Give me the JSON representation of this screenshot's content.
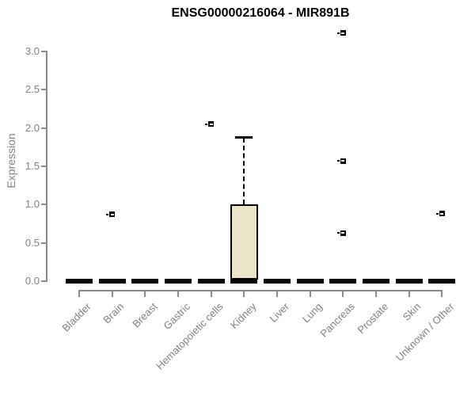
{
  "title": "ENSG00000216064 - MIR891B",
  "axes": {
    "y_label": "Expression",
    "y_tick_labels": [
      "0.0",
      "0.5",
      "1.0",
      "1.5",
      "2.0",
      "2.5",
      "3.0"
    ],
    "x_categories": [
      "Bladder",
      "Brain",
      "Breast",
      "Gastric",
      "Hematopoietic cells",
      "Kidney",
      "Liver",
      "Lung",
      "Pancreas",
      "Prostate",
      "Skin",
      "Unknown / Other"
    ]
  },
  "colors": {
    "title_text": "#000000",
    "axis_gray": "#8a8a8a",
    "label_gray": "#808080",
    "box_fill": "#e9e5c9",
    "box_border": "#000000",
    "median": "#000000"
  },
  "chart_data": {
    "type": "boxplot",
    "title": "ENSG00000216064 - MIR891B",
    "xlabel": "",
    "ylabel": "Expression",
    "ylim": [
      0,
      3.2
    ],
    "y_ticks": [
      0,
      0.5,
      1.0,
      1.5,
      2.0,
      2.5,
      3.0
    ],
    "grid": false,
    "legend": false,
    "categories": [
      "Bladder",
      "Brain",
      "Breast",
      "Gastric",
      "Hematopoietic cells",
      "Kidney",
      "Liver",
      "Lung",
      "Pancreas",
      "Prostate",
      "Skin",
      "Unknown / Other"
    ],
    "boxes": [
      {
        "category": "Bladder",
        "median": 0,
        "q1": 0,
        "q3": 0,
        "whisker_low": 0,
        "whisker_high": 0,
        "outliers": []
      },
      {
        "category": "Brain",
        "median": 0,
        "q1": 0,
        "q3": 0,
        "whisker_low": 0,
        "whisker_high": 0,
        "outliers": [
          0.87
        ]
      },
      {
        "category": "Breast",
        "median": 0,
        "q1": 0,
        "q3": 0,
        "whisker_low": 0,
        "whisker_high": 0,
        "outliers": []
      },
      {
        "category": "Gastric",
        "median": 0,
        "q1": 0,
        "q3": 0,
        "whisker_low": 0,
        "whisker_high": 0,
        "outliers": []
      },
      {
        "category": "Hematopoietic cells",
        "median": 0,
        "q1": 0,
        "q3": 0,
        "whisker_low": 0,
        "whisker_high": 0,
        "outliers": [
          2.05
        ]
      },
      {
        "category": "Kidney",
        "median": 0,
        "q1": 0,
        "q3": 1.0,
        "whisker_low": 0,
        "whisker_high": 1.87,
        "outliers": []
      },
      {
        "category": "Liver",
        "median": 0,
        "q1": 0,
        "q3": 0,
        "whisker_low": 0,
        "whisker_high": 0,
        "outliers": []
      },
      {
        "category": "Lung",
        "median": 0,
        "q1": 0,
        "q3": 0,
        "whisker_low": 0,
        "whisker_high": 0,
        "outliers": []
      },
      {
        "category": "Pancreas",
        "median": 0,
        "q1": 0,
        "q3": 0,
        "whisker_low": 0,
        "whisker_high": 0,
        "outliers": [
          3.24,
          1.57,
          0.63
        ]
      },
      {
        "category": "Prostate",
        "median": 0,
        "q1": 0,
        "q3": 0,
        "whisker_low": 0,
        "whisker_high": 0,
        "outliers": []
      },
      {
        "category": "Skin",
        "median": 0,
        "q1": 0,
        "q3": 0,
        "whisker_low": 0,
        "whisker_high": 0,
        "outliers": []
      },
      {
        "category": "Unknown / Other",
        "median": 0,
        "q1": 0,
        "q3": 0,
        "whisker_low": 0,
        "whisker_high": 0,
        "outliers": [
          0.88
        ]
      }
    ]
  }
}
